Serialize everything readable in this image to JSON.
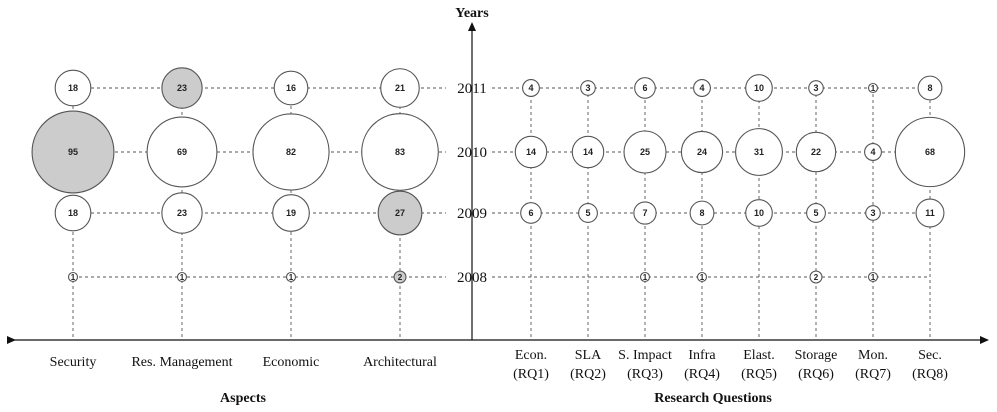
{
  "chart_data": {
    "type": "bubble",
    "y_axis_title": "Years",
    "years": [
      "2011",
      "2010",
      "2009",
      "2008"
    ],
    "left_axis_title": "Aspects",
    "left_categories": [
      "Security",
      "Res. Management",
      "Economic",
      "Architectural"
    ],
    "left_values": [
      [
        18,
        23,
        16,
        21
      ],
      [
        95,
        69,
        82,
        83
      ],
      [
        18,
        23,
        19,
        27
      ],
      [
        1,
        1,
        1,
        2
      ]
    ],
    "left_highlighted": [
      [
        false,
        true,
        false,
        false
      ],
      [
        true,
        false,
        false,
        false
      ],
      [
        false,
        false,
        false,
        true
      ],
      [
        false,
        false,
        false,
        true
      ]
    ],
    "right_axis_title": "Research Questions",
    "right_categories": [
      [
        "Econ.",
        "(RQ1)"
      ],
      [
        "SLA",
        "(RQ2)"
      ],
      [
        "S. Impact",
        "(RQ3)"
      ],
      [
        "Infra",
        "(RQ4)"
      ],
      [
        "Elast.",
        "(RQ5)"
      ],
      [
        "Storage",
        "(RQ6)"
      ],
      [
        "Mon.",
        "(RQ7)"
      ],
      [
        "Sec.",
        "(RQ8)"
      ]
    ],
    "right_values": [
      [
        4,
        3,
        6,
        4,
        10,
        3,
        1,
        8
      ],
      [
        14,
        14,
        25,
        24,
        31,
        22,
        4,
        68
      ],
      [
        6,
        5,
        7,
        8,
        10,
        5,
        3,
        11
      ],
      [
        null,
        null,
        1,
        1,
        null,
        2,
        1,
        null
      ]
    ],
    "highlight_color": "#cccccc"
  }
}
